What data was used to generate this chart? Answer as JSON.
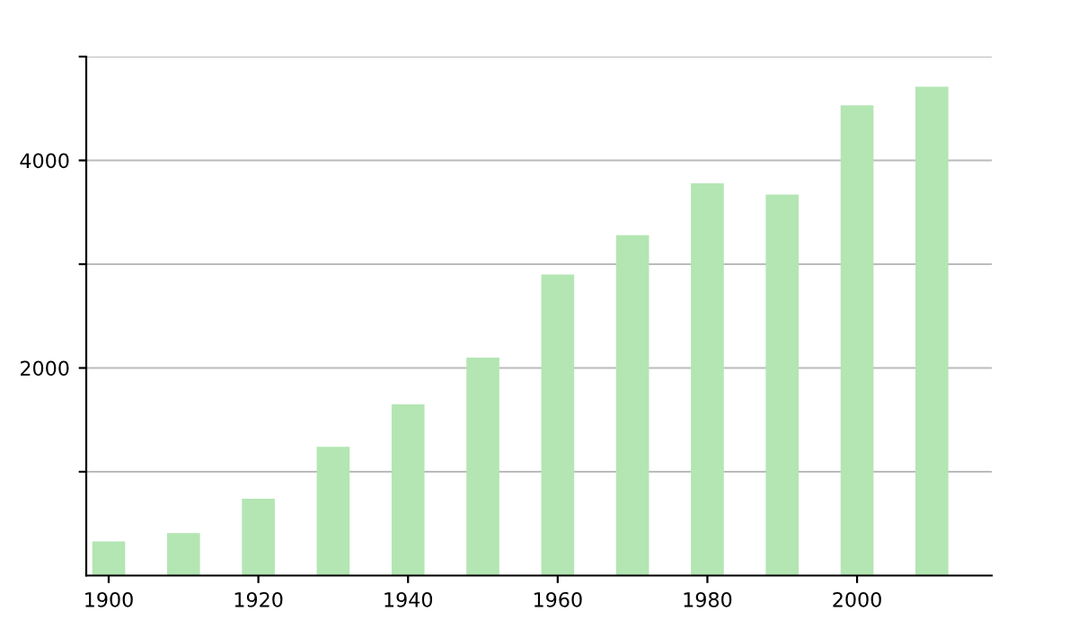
{
  "chart_data": {
    "type": "bar",
    "x": [
      1900,
      1910,
      1920,
      1930,
      1940,
      1950,
      1960,
      1970,
      1980,
      1990,
      2000,
      2010
    ],
    "values": [
      330,
      410,
      740,
      1240,
      1650,
      2100,
      2900,
      3280,
      3780,
      3670,
      4530,
      4710
    ],
    "color": "#b3e6b3",
    "xlim": [
      1897,
      2018
    ],
    "xticks": [
      1900,
      1920,
      1940,
      1960,
      1980,
      2000
    ],
    "ylim": [
      0,
      5000
    ],
    "yticks": [
      {
        "value": 1000,
        "label": null
      },
      2000,
      {
        "value": 3000,
        "label": null
      },
      4000,
      {
        "value": 5000,
        "label": null
      }
    ],
    "grid": "y"
  }
}
